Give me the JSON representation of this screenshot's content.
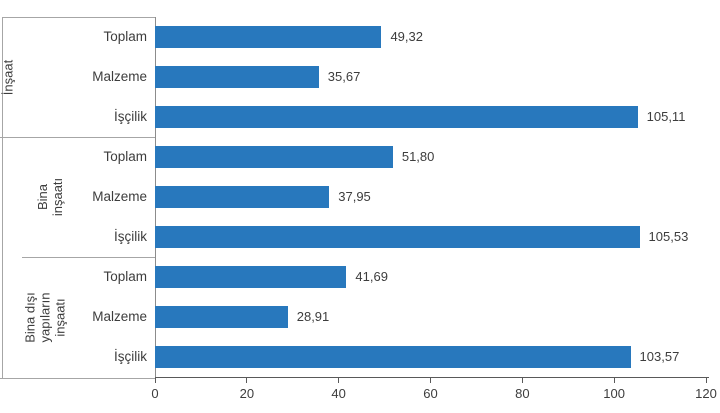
{
  "chart_data": {
    "type": "bar",
    "orientation": "horizontal",
    "title": "",
    "xlabel": "",
    "ylabel": "",
    "xlim": [
      0,
      120
    ],
    "grid": false,
    "legend": false,
    "x_ticks": [
      0,
      20,
      40,
      60,
      80,
      100,
      120
    ],
    "x_tick_labels": [
      "0",
      "20",
      "40",
      "60",
      "80",
      "100",
      "120"
    ],
    "bar_color": "#2878BD",
    "box_border_color": "#a6a6a6",
    "axis_color": "#595959",
    "text_color": "#3d3d3d",
    "decimal_style": "comma",
    "groups": [
      {
        "label": "İnşaat",
        "label_lines": [
          "İnşaat"
        ],
        "rows": [
          {
            "category": "Toplam",
            "value": 49.32,
            "value_label": "49,32"
          },
          {
            "category": "Malzeme",
            "value": 35.67,
            "value_label": "35,67"
          },
          {
            "category": "İşçilik",
            "value": 105.11,
            "value_label": "105,11"
          }
        ]
      },
      {
        "label": "Bina inşaatı",
        "label_lines": [
          "Bina",
          "inşaatı"
        ],
        "rows": [
          {
            "category": "Toplam",
            "value": 51.8,
            "value_label": "51,80"
          },
          {
            "category": "Malzeme",
            "value": 37.95,
            "value_label": "37,95"
          },
          {
            "category": "İşçilik",
            "value": 105.53,
            "value_label": "105,53"
          }
        ]
      },
      {
        "label": "Bina dışı yapıların inşaatı",
        "label_lines": [
          "Bina dışı",
          "yapıların",
          "inşaatı"
        ],
        "rows": [
          {
            "category": "Toplam",
            "value": 41.69,
            "value_label": "41,69"
          },
          {
            "category": "Malzeme",
            "value": 28.91,
            "value_label": "28,91"
          },
          {
            "category": "İşçilik",
            "value": 103.57,
            "value_label": "103,57"
          }
        ]
      }
    ]
  }
}
